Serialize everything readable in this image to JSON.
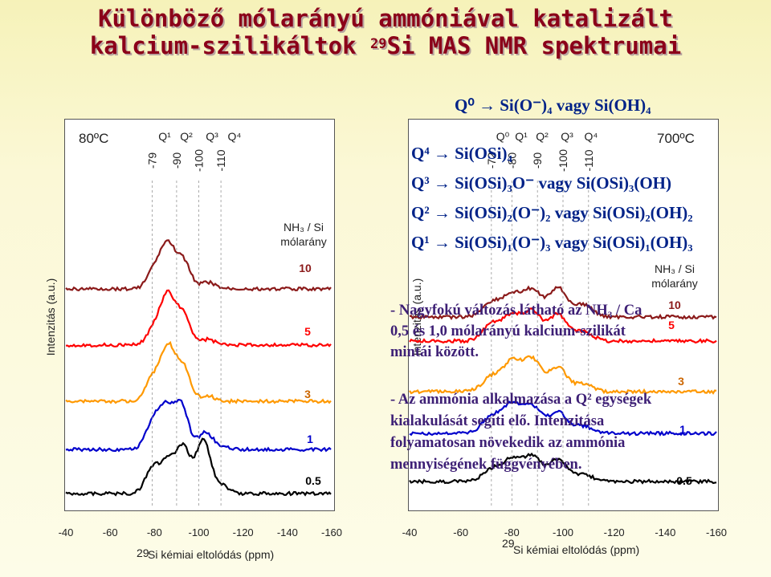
{
  "title": {
    "line1": "Különböző mólarányú ammóniával katalizált",
    "line2_pre": "kalcium-szilikáltok ",
    "line2_sup": "29",
    "line2_post": "Si MAS NMR spektrumai"
  },
  "legend_box": {
    "q0": "Q⁰ → Si(O⁻)₄ vagy Si(OH)₄",
    "q4": "Q⁴ → Si(OSi)₄",
    "q3": "Q³ → Si(OSi)₃O⁻ vagy Si(OSi)₃(OH)",
    "q2": "Q² → Si(OSi)₂(O⁻)₂ vagy Si(OSi)₂(OH)₂",
    "q1": "Q¹ → Si(OSi)₁(O⁻)₃ vagy Si(OSi)₁(OH)₃"
  },
  "notes": {
    "note1_l1": "- Nagyfokú változás látható az NH₃ / Ca",
    "note1_l2": "0,5 és 1,0 mólarányú kalcium-szilikát",
    "note1_l3": "mintái között.",
    "note2_l1": "- Az ammónia alkalmazása a Q² egységek",
    "note2_l2": "kialakulását segíti elő. Intenzitása",
    "note2_l3": "folyamatosan növekedik az ammónia",
    "note2_l4": "mennyiségének függvényében."
  },
  "colors": {
    "title": "#8b0019",
    "series_10": "#8b1a1a",
    "series_5": "#ff0000",
    "series_3": "#ff9900",
    "series_1": "#0000cc",
    "series_05": "#000000",
    "note": "#3d1f75",
    "legend": "#002288"
  },
  "chart_data": [
    {
      "type": "line",
      "temperature": "80ºC",
      "xlabel_sup": "29",
      "xlabel": "Si kémiai eltolódás (ppm)",
      "ylabel": "Intenzitás (a.u.)",
      "x_ticks": [
        "-40",
        "-60",
        "-80",
        "-100",
        "-120",
        "-140",
        "-160"
      ],
      "xlim": [
        -40,
        -160
      ],
      "ratio_header_l1": "NH₃ / Si",
      "ratio_header_l2": "mólarány",
      "q_labels": [
        "Q¹",
        "Q²",
        "Q³",
        "Q⁴"
      ],
      "ppm_marks": [
        "-79",
        "-90",
        "-100",
        "-110"
      ],
      "series": [
        {
          "name": "10",
          "peaks": [
            [
              -80,
              0.35
            ],
            [
              -86,
              0.75
            ],
            [
              -93,
              0.5
            ],
            [
              -104,
              0.12
            ]
          ]
        },
        {
          "name": "5",
          "peaks": [
            [
              -80,
              0.3
            ],
            [
              -86,
              0.85
            ],
            [
              -93,
              0.55
            ],
            [
              -104,
              0.1
            ]
          ]
        },
        {
          "name": "3",
          "peaks": [
            [
              -79,
              0.4
            ],
            [
              -86,
              0.95
            ],
            [
              -93,
              0.6
            ],
            [
              -104,
              0.1
            ]
          ]
        },
        {
          "name": "1",
          "peaks": [
            [
              -79,
              0.45
            ],
            [
              -85,
              0.7
            ],
            [
              -92,
              0.8
            ],
            [
              -103,
              0.3
            ],
            [
              -110,
              0.05
            ]
          ]
        },
        {
          "name": "0.5",
          "peaks": [
            [
              -79,
              0.45
            ],
            [
              -86,
              0.55
            ],
            [
              -93,
              0.8
            ],
            [
              -102,
              0.95
            ],
            [
              -110,
              0.15
            ]
          ]
        }
      ]
    },
    {
      "type": "line",
      "temperature": "700ºC",
      "xlabel_sup": "29",
      "xlabel": "Si kémiai eltolódás (ppm)",
      "ylabel": "Intenzitás (a.u.)",
      "x_ticks": [
        "-40",
        "-60",
        "-80",
        "-100",
        "-120",
        "-140",
        "-160"
      ],
      "xlim": [
        -40,
        -160
      ],
      "ratio_header_l1": "NH₃ / Si",
      "ratio_header_l2": "mólarány",
      "q_labels": [
        "Q⁰",
        "Q¹",
        "Q²",
        "Q³",
        "Q⁴"
      ],
      "ppm_marks": [
        "-72",
        "-80",
        "-90",
        "-100",
        "-110"
      ],
      "series": [
        {
          "name": "10",
          "peaks": [
            [
              -72,
              0.3
            ],
            [
              -80,
              0.45
            ],
            [
              -88,
              0.55
            ],
            [
              -98,
              0.6
            ],
            [
              -108,
              0.25
            ]
          ]
        },
        {
          "name": "5",
          "peaks": [
            [
              -72,
              0.35
            ],
            [
              -80,
              0.5
            ],
            [
              -88,
              0.6
            ],
            [
              -98,
              0.55
            ],
            [
              -108,
              0.2
            ]
          ]
        },
        {
          "name": "3",
          "peaks": [
            [
              -72,
              0.3
            ],
            [
              -80,
              0.6
            ],
            [
              -88,
              0.65
            ],
            [
              -98,
              0.5
            ],
            [
              -108,
              0.15
            ]
          ]
        },
        {
          "name": "1",
          "peaks": [
            [
              -72,
              0.35
            ],
            [
              -80,
              0.6
            ],
            [
              -88,
              0.55
            ],
            [
              -98,
              0.45
            ],
            [
              -108,
              0.15
            ]
          ]
        },
        {
          "name": "0.5",
          "peaks": [
            [
              -72,
              0.25
            ],
            [
              -80,
              0.45
            ],
            [
              -88,
              0.5
            ],
            [
              -98,
              0.45
            ],
            [
              -108,
              0.15
            ]
          ]
        }
      ]
    }
  ]
}
